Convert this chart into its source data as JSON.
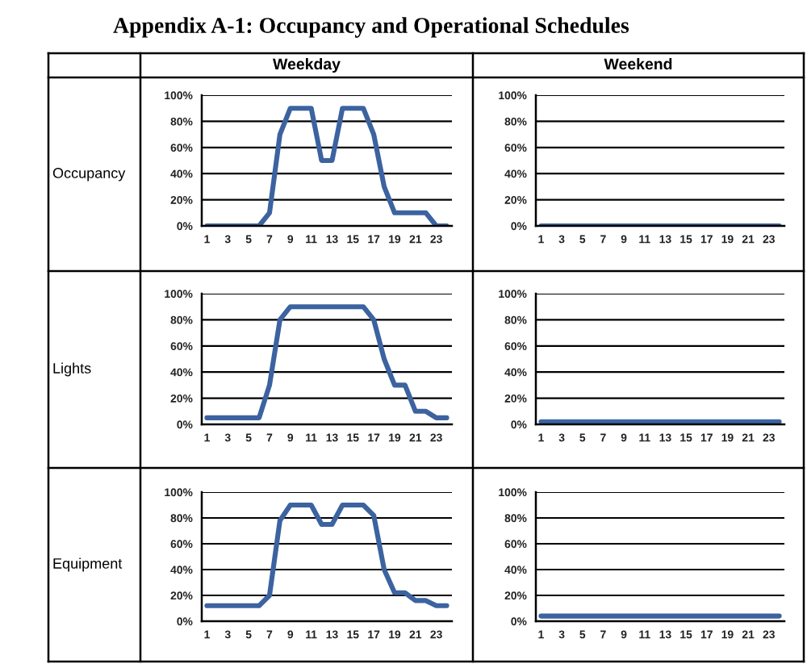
{
  "chart_data": [
    {
      "type": "line",
      "title": "Weekday",
      "ylabel": "Occupancy",
      "annotations": [
        "Appendix A-1: Occupancy and Operational Schedules"
      ],
      "categories": [
        "1",
        null,
        "3",
        null,
        "5",
        null,
        "7",
        null,
        "9",
        null,
        "11",
        null,
        "13",
        null,
        "15",
        null,
        "17",
        null,
        "19",
        null,
        "21",
        null,
        "23",
        null
      ],
      "values": [
        0,
        0,
        0,
        0,
        0,
        0,
        10,
        70,
        90,
        90,
        90,
        50,
        50,
        90,
        90,
        90,
        70,
        30,
        10,
        10,
        10,
        10,
        0,
        0
      ],
      "color": "#3c63a0",
      "ylim": [
        0,
        100
      ],
      "yticks": [
        {
          "value": 0,
          "label": "0%"
        },
        {
          "value": 20,
          "label": "20%"
        },
        {
          "value": 40,
          "label": "40%"
        },
        {
          "value": 60,
          "label": "60%"
        },
        {
          "value": 80,
          "label": "80%"
        },
        {
          "value": 100,
          "label": "100%"
        }
      ],
      "grid": "y"
    },
    {
      "type": "line",
      "title": "Weekend",
      "categories": [
        "1",
        null,
        "3",
        null,
        "5",
        null,
        "7",
        null,
        "9",
        null,
        "11",
        null,
        "13",
        null,
        "15",
        null,
        "17",
        null,
        "19",
        null,
        "21",
        null,
        "23",
        null
      ],
      "values": [
        0,
        0,
        0,
        0,
        0,
        0,
        0,
        0,
        0,
        0,
        0,
        0,
        0,
        0,
        0,
        0,
        0,
        0,
        0,
        0,
        0,
        0,
        0,
        0
      ],
      "color": "#3c63a0",
      "ylim": [
        0,
        100
      ],
      "yticks": [
        {
          "value": 0,
          "label": "0%"
        },
        {
          "value": 20,
          "label": "20%"
        },
        {
          "value": 40,
          "label": "40%"
        },
        {
          "value": 60,
          "label": "60%"
        },
        {
          "value": 80,
          "label": "80%"
        },
        {
          "value": 100,
          "label": "100%"
        }
      ],
      "grid": "y"
    },
    {
      "type": "line",
      "ylabel": "Lights",
      "categories": [
        "1",
        null,
        "3",
        null,
        "5",
        null,
        "7",
        null,
        "9",
        null,
        "11",
        null,
        "13",
        null,
        "15",
        null,
        "17",
        null,
        "19",
        null,
        "21",
        null,
        "23",
        null
      ],
      "values": [
        5,
        5,
        5,
        5,
        5,
        5,
        30,
        80,
        90,
        90,
        90,
        90,
        90,
        90,
        90,
        90,
        80,
        50,
        30,
        30,
        10,
        10,
        5,
        5
      ],
      "color": "#3c63a0",
      "ylim": [
        0,
        100
      ],
      "yticks": [
        {
          "value": 0,
          "label": "0%"
        },
        {
          "value": 20,
          "label": "20%"
        },
        {
          "value": 40,
          "label": "40%"
        },
        {
          "value": 60,
          "label": "60%"
        },
        {
          "value": 80,
          "label": "80%"
        },
        {
          "value": 100,
          "label": "100%"
        }
      ],
      "grid": "y"
    },
    {
      "type": "line",
      "categories": [
        "1",
        null,
        "3",
        null,
        "5",
        null,
        "7",
        null,
        "9",
        null,
        "11",
        null,
        "13",
        null,
        "15",
        null,
        "17",
        null,
        "19",
        null,
        "21",
        null,
        "23",
        null
      ],
      "values": [
        2,
        2,
        2,
        2,
        2,
        2,
        2,
        2,
        2,
        2,
        2,
        2,
        2,
        2,
        2,
        2,
        2,
        2,
        2,
        2,
        2,
        2,
        2,
        2
      ],
      "color": "#3c63a0",
      "ylim": [
        0,
        100
      ],
      "yticks": [
        {
          "value": 0,
          "label": "0%"
        },
        {
          "value": 20,
          "label": "20%"
        },
        {
          "value": 40,
          "label": "40%"
        },
        {
          "value": 60,
          "label": "60%"
        },
        {
          "value": 80,
          "label": "80%"
        },
        {
          "value": 100,
          "label": "100%"
        }
      ],
      "grid": "y"
    },
    {
      "type": "line",
      "ylabel": "Equipment",
      "categories": [
        "1",
        null,
        "3",
        null,
        "5",
        null,
        "7",
        null,
        "9",
        null,
        "11",
        null,
        "13",
        null,
        "15",
        null,
        "17",
        null,
        "19",
        null,
        "21",
        null,
        "23",
        null
      ],
      "values": [
        12,
        12,
        12,
        12,
        12,
        12,
        20,
        78,
        90,
        90,
        90,
        75,
        75,
        90,
        90,
        90,
        82,
        40,
        22,
        22,
        16,
        16,
        12,
        12
      ],
      "color": "#3c63a0",
      "ylim": [
        0,
        100
      ],
      "yticks": [
        {
          "value": 0,
          "label": "0%"
        },
        {
          "value": 20,
          "label": "20%"
        },
        {
          "value": 40,
          "label": "40%"
        },
        {
          "value": 60,
          "label": "60%"
        },
        {
          "value": 80,
          "label": "80%"
        },
        {
          "value": 100,
          "label": "100%"
        }
      ],
      "grid": "y"
    },
    {
      "type": "line",
      "categories": [
        "1",
        null,
        "3",
        null,
        "5",
        null,
        "7",
        null,
        "9",
        null,
        "11",
        null,
        "13",
        null,
        "15",
        null,
        "17",
        null,
        "19",
        null,
        "21",
        null,
        "23",
        null
      ],
      "values": [
        4,
        4,
        4,
        4,
        4,
        4,
        4,
        4,
        4,
        4,
        4,
        4,
        4,
        4,
        4,
        4,
        4,
        4,
        4,
        4,
        4,
        4,
        4,
        4
      ],
      "color": "#3c63a0",
      "ylim": [
        0,
        100
      ],
      "yticks": [
        {
          "value": 0,
          "label": "0%"
        },
        {
          "value": 20,
          "label": "20%"
        },
        {
          "value": 40,
          "label": "40%"
        },
        {
          "value": 60,
          "label": "60%"
        },
        {
          "value": 80,
          "label": "80%"
        },
        {
          "value": 100,
          "label": "100%"
        }
      ],
      "grid": "y"
    }
  ]
}
